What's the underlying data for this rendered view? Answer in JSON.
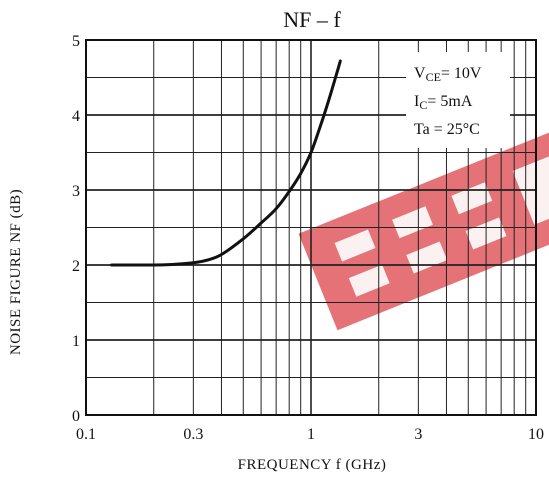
{
  "chart_data": {
    "type": "line",
    "title": "NF – f",
    "xlabel": "FREQUENCY  f  (GHz)",
    "ylabel": "NOISE FIGURE  NF  (dB)",
    "xscale": "log",
    "xlim": [
      0.1,
      10
    ],
    "ylim": [
      0,
      5
    ],
    "grid": true,
    "x_ticks": [
      0.1,
      0.3,
      1,
      3,
      10
    ],
    "x_tick_labels": [
      "0.1",
      "0.3",
      "1",
      "3",
      "10"
    ],
    "y_ticks": [
      0,
      1,
      2,
      3,
      4,
      5
    ],
    "y_tick_labels": [
      "0",
      "1",
      "2",
      "3",
      "4",
      "5"
    ],
    "annotation": {
      "vce": {
        "main": "V",
        "sub": "CE",
        "rest": "= 10V"
      },
      "ic": {
        "main": "I",
        "sub": "C",
        "rest": "= 5mA"
      },
      "ta": "Ta = 25°C"
    },
    "watermark_color": "#e05a5f",
    "line_color": "#111111",
    "series": [
      {
        "x": [
          0.13,
          0.2,
          0.25,
          0.3,
          0.35,
          0.4,
          0.5,
          0.6,
          0.7,
          0.8,
          0.9,
          1.0,
          1.1,
          1.2,
          1.3,
          1.35
        ],
        "y": [
          2.0,
          2.0,
          2.01,
          2.03,
          2.07,
          2.14,
          2.35,
          2.56,
          2.75,
          2.98,
          3.22,
          3.5,
          3.85,
          4.2,
          4.55,
          4.72
        ]
      }
    ]
  }
}
